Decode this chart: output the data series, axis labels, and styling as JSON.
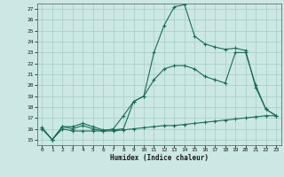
{
  "title": "",
  "xlabel": "Humidex (Indice chaleur)",
  "bg_color": "#cce8e4",
  "grid_color": "#aacfcc",
  "line_color": "#1a6b5a",
  "xlim": [
    -0.5,
    23.5
  ],
  "ylim": [
    14.5,
    27.5
  ],
  "xticks": [
    0,
    1,
    2,
    3,
    4,
    5,
    6,
    7,
    8,
    9,
    10,
    11,
    12,
    13,
    14,
    15,
    16,
    17,
    18,
    19,
    20,
    21,
    22,
    23
  ],
  "yticks": [
    15,
    16,
    17,
    18,
    19,
    20,
    21,
    22,
    23,
    24,
    25,
    26,
    27
  ],
  "line1_x": [
    0,
    1,
    2,
    3,
    4,
    5,
    6,
    7,
    8,
    9,
    10,
    11,
    12,
    13,
    14,
    15,
    16,
    17,
    18,
    19,
    20,
    21,
    22,
    23
  ],
  "line1_y": [
    16.1,
    15.0,
    16.2,
    16.2,
    16.5,
    16.2,
    15.9,
    15.9,
    16.0,
    18.5,
    19.0,
    23.0,
    25.5,
    27.2,
    27.4,
    24.5,
    23.8,
    23.5,
    23.3,
    23.4,
    23.2,
    19.8,
    17.8,
    17.2
  ],
  "line2_x": [
    0,
    1,
    2,
    3,
    4,
    5,
    6,
    7,
    8,
    9,
    10,
    11,
    12,
    13,
    14,
    15,
    16,
    17,
    18,
    19,
    20,
    21,
    22,
    23
  ],
  "line2_y": [
    16.1,
    15.0,
    16.2,
    16.0,
    16.3,
    16.0,
    15.8,
    16.0,
    17.2,
    18.5,
    19.0,
    20.5,
    21.5,
    21.8,
    21.8,
    21.5,
    20.8,
    20.5,
    20.2,
    23.0,
    23.0,
    20.0,
    17.8,
    17.2
  ],
  "line3_x": [
    0,
    1,
    2,
    3,
    4,
    5,
    6,
    7,
    8,
    9,
    10,
    11,
    12,
    13,
    14,
    15,
    16,
    17,
    18,
    19,
    20,
    21,
    22,
    23
  ],
  "line3_y": [
    16.0,
    15.0,
    16.0,
    15.8,
    15.8,
    15.8,
    15.8,
    15.8,
    15.9,
    16.0,
    16.1,
    16.2,
    16.3,
    16.3,
    16.4,
    16.5,
    16.6,
    16.7,
    16.8,
    16.9,
    17.0,
    17.1,
    17.2,
    17.2
  ]
}
